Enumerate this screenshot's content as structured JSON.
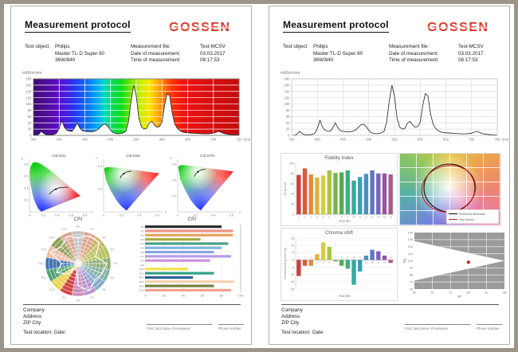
{
  "brand_color": "#e30613",
  "header": {
    "title": "Measurement protocol",
    "logo_text": "GOSSEN",
    "test_object_label": "Test object:",
    "test_object_name": "Philips",
    "test_object_type": "Master TL-D Super 80",
    "test_object_power": "36W/840",
    "file_label": "Measurement file:",
    "file_value": "Test-MCSV",
    "date_label": "Date of measurement:",
    "date_value": "03.03.2017",
    "time_label": "Time of measurement:",
    "time_value": "08:17:53"
  },
  "footer": {
    "company": "Company",
    "address": "Address",
    "zip_city": "ZIP City",
    "test_location_label": "Test location:",
    "date_label": "Date:",
    "name_hint": "First, last name of measurer",
    "phone_hint": "Phone number"
  },
  "chart_data": [
    {
      "id": "spectrum",
      "type": "area",
      "ylabel": "mW/m²/nm",
      "xlabel": "[nm]",
      "xlim": [
        350,
        750
      ],
      "ylim": [
        0,
        180
      ],
      "xticks": [
        350,
        400,
        450,
        500,
        550,
        600,
        650,
        700,
        750
      ],
      "yticks": [
        0,
        20,
        40,
        60,
        80,
        100,
        120,
        140,
        160,
        180
      ],
      "x": [
        350,
        355,
        360,
        365,
        370,
        375,
        380,
        385,
        390,
        395,
        400,
        405,
        410,
        415,
        420,
        425,
        430,
        435,
        440,
        445,
        450,
        455,
        460,
        465,
        470,
        475,
        480,
        485,
        490,
        495,
        500,
        505,
        510,
        515,
        520,
        525,
        530,
        535,
        540,
        545,
        550,
        555,
        560,
        565,
        570,
        575,
        580,
        585,
        590,
        595,
        600,
        605,
        610,
        615,
        620,
        625,
        630,
        635,
        640,
        645,
        650,
        660,
        670,
        680,
        690,
        700,
        710,
        720,
        730,
        740,
        750
      ],
      "values": [
        0,
        1,
        3,
        13,
        6,
        2,
        2,
        2,
        3,
        7,
        22,
        48,
        26,
        16,
        14,
        13,
        24,
        40,
        24,
        15,
        13,
        12,
        12,
        12,
        14,
        18,
        26,
        34,
        36,
        28,
        16,
        9,
        6,
        5,
        6,
        8,
        14,
        45,
        110,
        160,
        125,
        55,
        27,
        20,
        22,
        38,
        45,
        34,
        26,
        28,
        42,
        95,
        133,
        126,
        70,
        36,
        22,
        15,
        11,
        9,
        8,
        7,
        6,
        5,
        5,
        7,
        13,
        6,
        3,
        2,
        1
      ]
    },
    {
      "id": "cie1931",
      "type": "chromaticity",
      "title": "CIE1931",
      "xlabel": "x",
      "ylabel": "y",
      "xlim": [
        0,
        0.85
      ],
      "ylim": [
        0,
        0.88
      ],
      "xticks": [
        0,
        0.2,
        0.4,
        0.6,
        0.8
      ],
      "yticks": [
        0.2,
        0.4,
        0.6,
        0.8
      ],
      "locus": [
        [
          0.174,
          0.005
        ],
        [
          0.15,
          0.022
        ],
        [
          0.135,
          0.04
        ],
        [
          0.124,
          0.058
        ],
        [
          0.109,
          0.087
        ],
        [
          0.091,
          0.133
        ],
        [
          0.064,
          0.206
        ],
        [
          0.045,
          0.295
        ],
        [
          0.023,
          0.413
        ],
        [
          0.008,
          0.538
        ],
        [
          0.004,
          0.655
        ],
        [
          0.014,
          0.75
        ],
        [
          0.039,
          0.812
        ],
        [
          0.074,
          0.834
        ],
        [
          0.115,
          0.826
        ],
        [
          0.155,
          0.806
        ],
        [
          0.23,
          0.754
        ],
        [
          0.302,
          0.692
        ],
        [
          0.373,
          0.625
        ],
        [
          0.444,
          0.555
        ],
        [
          0.512,
          0.487
        ],
        [
          0.575,
          0.424
        ],
        [
          0.627,
          0.372
        ],
        [
          0.666,
          0.334
        ],
        [
          0.692,
          0.308
        ],
        [
          0.714,
          0.286
        ],
        [
          0.735,
          0.265
        ]
      ],
      "planck": [
        [
          0.553,
          0.411
        ],
        [
          0.527,
          0.413
        ],
        [
          0.478,
          0.407
        ],
        [
          0.437,
          0.404
        ],
        [
          0.396,
          0.39
        ],
        [
          0.36,
          0.372
        ],
        [
          0.333,
          0.348
        ],
        [
          0.313,
          0.329
        ],
        [
          0.295,
          0.31
        ],
        [
          0.285,
          0.295
        ]
      ],
      "point": [
        0.38,
        0.377
      ]
    },
    {
      "id": "cie1960",
      "type": "chromaticity",
      "title": "CIE1960",
      "xlabel": "u",
      "ylabel": "v",
      "xlim": [
        0,
        0.66
      ],
      "ylim": [
        0,
        0.46
      ],
      "xticks": [
        0,
        0.2,
        0.4,
        0.6
      ],
      "yticks": [
        0.2,
        0.4
      ],
      "locus": [
        [
          0.257,
          0.011
        ],
        [
          0.216,
          0.037
        ],
        [
          0.188,
          0.058
        ],
        [
          0.144,
          0.101
        ],
        [
          0.083,
          0.181
        ],
        [
          0.028,
          0.275
        ],
        [
          0.005,
          0.376
        ],
        [
          0.023,
          0.389
        ],
        [
          0.05,
          0.391
        ],
        [
          0.113,
          0.388
        ],
        [
          0.153,
          0.384
        ],
        [
          0.262,
          0.374
        ],
        [
          0.322,
          0.366
        ],
        [
          0.404,
          0.36
        ],
        [
          0.52,
          0.348
        ],
        [
          0.623,
          0.338
        ]
      ],
      "planck": [
        [
          0.31,
          0.357
        ],
        [
          0.256,
          0.349
        ],
        [
          0.224,
          0.334
        ],
        [
          0.2,
          0.315
        ],
        [
          0.185,
          0.295
        ]
      ],
      "point": [
        0.225,
        0.334
      ]
    },
    {
      "id": "cie1976",
      "type": "chromaticity",
      "title": "CIE1976",
      "xlabel": "u'",
      "ylabel": "v'",
      "xlim": [
        0,
        0.66
      ],
      "ylim": [
        0,
        0.66
      ],
      "xticks": [
        0,
        0.2,
        0.4,
        0.6
      ],
      "yticks": [
        0.2,
        0.4,
        0.6
      ],
      "locus": [
        [
          0.257,
          0.017
        ],
        [
          0.216,
          0.055
        ],
        [
          0.188,
          0.087
        ],
        [
          0.144,
          0.151
        ],
        [
          0.083,
          0.272
        ],
        [
          0.028,
          0.412
        ],
        [
          0.005,
          0.564
        ],
        [
          0.023,
          0.584
        ],
        [
          0.05,
          0.587
        ],
        [
          0.113,
          0.582
        ],
        [
          0.153,
          0.576
        ],
        [
          0.262,
          0.56
        ],
        [
          0.322,
          0.549
        ],
        [
          0.404,
          0.54
        ],
        [
          0.52,
          0.522
        ],
        [
          0.623,
          0.506
        ]
      ],
      "planck": [
        [
          0.31,
          0.536
        ],
        [
          0.256,
          0.524
        ],
        [
          0.224,
          0.501
        ],
        [
          0.2,
          0.473
        ],
        [
          0.185,
          0.443
        ]
      ],
      "point": [
        0.225,
        0.501
      ]
    },
    {
      "id": "cri_radar",
      "type": "radar",
      "title": "CRI",
      "categories": [
        "Ra",
        "R1",
        "R2",
        "R3",
        "R4",
        "R5",
        "R6",
        "R7",
        "R8",
        "R9",
        "R10",
        "R11",
        "R12",
        "R13",
        "R14",
        "R15"
      ],
      "values": [
        80,
        92,
        92,
        58,
        87,
        80,
        72,
        90,
        68,
        15,
        45,
        72,
        50,
        93,
        72,
        90
      ],
      "colors": [
        "#c0c0c0",
        "#de9e86",
        "#c3b05c",
        "#b0bf54",
        "#86a96c",
        "#7fae9e",
        "#7ba6c5",
        "#b08cc8",
        "#c88ab8",
        "#d23a3a",
        "#e8d44a",
        "#4a9e6e",
        "#3a6ab0",
        "#edb8a0",
        "#8a9a50",
        "#d8a088"
      ]
    },
    {
      "id": "cri_bars",
      "type": "bar",
      "title": "CRI",
      "categories": [
        "Ra",
        "R1",
        "R2",
        "R3",
        "R4",
        "R5",
        "R6",
        "R7",
        "R8",
        "R9",
        "R10",
        "R11",
        "R12",
        "R13",
        "R14",
        "R15"
      ],
      "values": [
        80,
        92,
        92,
        58,
        87,
        80,
        72,
        90,
        68,
        15,
        45,
        72,
        50,
        93,
        72,
        90
      ],
      "colors": [
        "#2b2b2b",
        "#ef9384",
        "#e8a25c",
        "#a9ab42",
        "#47a187",
        "#7fb4dd",
        "#86a5e3",
        "#b79ae8",
        "#cf90dd",
        "#ffffff",
        "#f2e34c",
        "#31a08a",
        "#2b5f9e",
        "#f8cfae",
        "#75803f",
        "#f0a08e"
      ],
      "xticks": [
        0,
        20,
        40,
        60,
        80,
        100
      ],
      "xlim": [
        0,
        100
      ]
    },
    {
      "id": "fidelity",
      "type": "bar",
      "title": "Fidelity Index",
      "ylabel": "Rf by Hue",
      "xlabel": "Hue bin",
      "categories": [
        "1",
        "2",
        "3",
        "4",
        "5",
        "6",
        "7",
        "8",
        "9",
        "10",
        "11",
        "12",
        "13",
        "14",
        "15",
        "16"
      ],
      "values": [
        77,
        90,
        78,
        72,
        76,
        86,
        81,
        82,
        86,
        66,
        73,
        79,
        86,
        80,
        80,
        78
      ],
      "colors": [
        "#c9413c",
        "#d85c3a",
        "#e08b3a",
        "#ddb33c",
        "#d9cc3f",
        "#a8c545",
        "#7ab648",
        "#53ad55",
        "#3fae85",
        "#36a99e",
        "#3a9fb5",
        "#4b8ec4",
        "#5b78c4",
        "#7a63bd",
        "#95569f",
        "#a85b85"
      ],
      "yticks": [
        0,
        20,
        40,
        60,
        80,
        100
      ],
      "ylim": [
        0,
        100
      ]
    },
    {
      "id": "color_vector",
      "type": "vector",
      "legend": [
        "Reference Illuminant",
        "Test Source"
      ],
      "reference_color": "#111111",
      "test_color": "#cc2222"
    },
    {
      "id": "chroma_shift",
      "type": "bar",
      "title": "Chroma shift",
      "ylabel": "Chroma shift by Hue [%]",
      "xlabel": "Hue bin",
      "categories": [
        "1",
        "2",
        "3",
        "4",
        "5",
        "6",
        "7",
        "8",
        "9",
        "10",
        "11",
        "12",
        "13",
        "14",
        "15",
        "16"
      ],
      "values": [
        -11,
        -4,
        -4,
        4,
        12,
        9,
        -1,
        -4,
        -6,
        -17,
        -8,
        3,
        7,
        6,
        3,
        -2
      ],
      "colors": [
        "#c9413c",
        "#d85c3a",
        "#e08b3a",
        "#ddb33c",
        "#d9cc3f",
        "#a8c545",
        "#7ab648",
        "#53ad55",
        "#3fae85",
        "#36a99e",
        "#3a9fb5",
        "#4b8ec4",
        "#5b78c4",
        "#7a63bd",
        "#95569f",
        "#a85b85"
      ],
      "yticks": [
        -20,
        -15,
        -10,
        -5,
        0,
        5,
        10,
        15
      ],
      "ylim": [
        -20,
        15
      ]
    },
    {
      "id": "rf_rg",
      "type": "scatter",
      "xlabel": "Rf",
      "ylabel": "Rg",
      "xlim": [
        50,
        100
      ],
      "ylim": [
        60,
        140
      ],
      "xticks": [
        50,
        60,
        70,
        80,
        90,
        100
      ],
      "yticks": [
        60,
        70,
        80,
        90,
        100,
        110,
        120,
        130,
        140
      ],
      "wedge": [
        [
          50,
          128
        ],
        [
          100,
          100
        ],
        [
          50,
          72
        ]
      ],
      "point": [
        80,
        98
      ],
      "point_color": "#cc1616"
    }
  ]
}
